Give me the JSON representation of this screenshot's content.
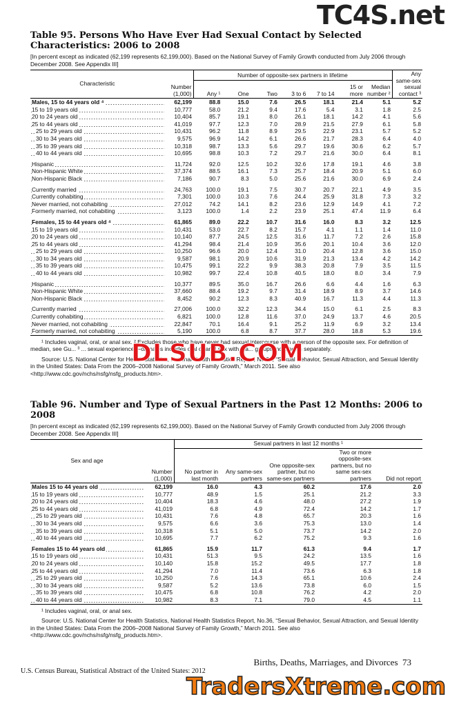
{
  "watermarks": {
    "top": "TC4S.net",
    "middle": "DLSUB.COM",
    "bottom": "TradersXtreme.com"
  },
  "t95": {
    "title": "Table 95. Persons Who Have Ever Had Sexual Contact by Selected Characteristics: 2006 to 2008",
    "subtitle": "[In percent except as indicated (62,199 represents 62,199,000). Based on the National Survey of Family Growth conducted from July 2006 through December 2008. See Appendix III]",
    "header": {
      "label": "Characteristic",
      "number": "Number (1,000)",
      "group": "Number of opposite-sex partners in lifetime",
      "columns": [
        "Any ¹",
        "One",
        "Two",
        "3 to 6",
        "7 to 14",
        "15 or more",
        "Median number ²"
      ],
      "last": "Any same-sex sexual contact ³"
    },
    "sections": [
      {
        "rows": [
          [
            "Males, 15 to 44 years old ⁴",
            "62,199",
            "88.8",
            "15.0",
            "7.6",
            "26.5",
            "18.1",
            "21.4",
            "5.1",
            "5.2"
          ],
          [
            "15 to 19 years old",
            "10,777",
            "58.0",
            "21.2",
            "9.4",
            "17.6",
            "5.4",
            "3.1",
            "1.8",
            "2.5"
          ],
          [
            "20 to 24 years old",
            "10,404",
            "85.7",
            "19.1",
            "8.0",
            "26.1",
            "18.1",
            "14.2",
            "4.1",
            "5.6"
          ],
          [
            "25 to 44 years old",
            "41,019",
            "97.7",
            "12.3",
            "7.0",
            "28.9",
            "21.5",
            "27.9",
            "6.1",
            "5.8"
          ],
          [
            "25 to 29 years old",
            "10,431",
            "96.2",
            "11.8",
            "8.9",
            "29.5",
            "22.9",
            "23.1",
            "5.7",
            "5.2"
          ],
          [
            "30 to 34 years old",
            "9,575",
            "96.9",
            "14.2",
            "6.1",
            "26.6",
            "21.7",
            "28.3",
            "6.4",
            "4.0"
          ],
          [
            "35 to 39 years old",
            "10,318",
            "98.7",
            "13.3",
            "5.6",
            "29.7",
            "19.6",
            "30.6",
            "6.2",
            "5.7"
          ],
          [
            "40 to 44 years old",
            "10,695",
            "98.8",
            "10.3",
            "7.2",
            "29.7",
            "21.6",
            "30.0",
            "6.4",
            "8.1"
          ]
        ]
      },
      {
        "rows": [
          [
            "Hispanic",
            "11,724",
            "92.0",
            "12.5",
            "10.2",
            "32.6",
            "17.8",
            "19.1",
            "4.6",
            "3.8"
          ],
          [
            "Non-Hispanic White",
            "37,374",
            "88.5",
            "16.1",
            "7.3",
            "25.7",
            "18.4",
            "20.9",
            "5.1",
            "6.0"
          ],
          [
            "Non-Hispanic Black",
            "7,186",
            "90.7",
            "8.3",
            "5.0",
            "25.6",
            "21.6",
            "30.0",
            "6.9",
            "2.4"
          ]
        ]
      },
      {
        "rows": [
          [
            "Currently married",
            "24,763",
            "100.0",
            "19.1",
            "7.5",
            "30.7",
            "20.7",
            "22.1",
            "4.9",
            "3.5"
          ],
          [
            "Currently cohabiting",
            "7,301",
            "100.0",
            "10.3",
            "7.6",
            "24.4",
            "25.9",
            "31.8",
            "7.3",
            "3.2"
          ],
          [
            "Never married, not cohabiting",
            "27,012",
            "74.2",
            "14.1",
            "8.2",
            "23.6",
            "12.9",
            "14.9",
            "4.1",
            "7.2"
          ],
          [
            "Formerly married, not cohabiting",
            "3,123",
            "100.0",
            "1.4",
            "2.2",
            "23.9",
            "25.1",
            "47.4",
            "11.9",
            "6.4"
          ]
        ]
      },
      {
        "rows": [
          [
            "Females, 15 to 44 years old ⁴",
            "61,865",
            "89.0",
            "22.2",
            "10.7",
            "31.6",
            "16.0",
            "8.3",
            "3.2",
            "12.5"
          ],
          [
            "15 to 19 years old",
            "10,431",
            "53.0",
            "22.7",
            "8.2",
            "15.7",
            "4.1",
            "1.1",
            "1.4",
            "11.0"
          ],
          [
            "20 to 24 years old",
            "10,140",
            "87.7",
            "24.5",
            "12.5",
            "31.6",
            "11.7",
            "7.2",
            "2.6",
            "15.8"
          ],
          [
            "25 to 44 years old",
            "41,294",
            "98.4",
            "21.4",
            "10.9",
            "35.6",
            "20.1",
            "10.4",
            "3.6",
            "12.0"
          ],
          [
            "25 to 29 years old",
            "10,250",
            "96.6",
            "20.0",
            "12.4",
            "31.0",
            "20.4",
            "12.8",
            "3.6",
            "15.0"
          ],
          [
            "30 to 34 years old",
            "9,587",
            "98.1",
            "20.9",
            "10.6",
            "31.9",
            "21.3",
            "13.4",
            "4.2",
            "14.2"
          ],
          [
            "35 to 39 years old",
            "10,475",
            "99.1",
            "22.2",
            "9.9",
            "38.3",
            "20.8",
            "7.9",
            "3.5",
            "11.5"
          ],
          [
            "40 to 44 years old",
            "10,982",
            "99.7",
            "22.4",
            "10.8",
            "40.5",
            "18.0",
            "8.0",
            "3.4",
            "7.9"
          ]
        ]
      },
      {
        "rows": [
          [
            "Hispanic",
            "10,377",
            "89.5",
            "35.0",
            "16.7",
            "26.6",
            "6.6",
            "4.4",
            "1.6",
            "6.3"
          ],
          [
            "Non-Hispanic White",
            "37,660",
            "88.4",
            "19.2",
            "9.7",
            "31.4",
            "18.9",
            "8.9",
            "3.7",
            "14.6"
          ],
          [
            "Non-Hispanic Black",
            "8,452",
            "90.2",
            "12.3",
            "8.3",
            "40.9",
            "16.7",
            "11.3",
            "4.4",
            "11.3"
          ]
        ]
      },
      {
        "rows": [
          [
            "Currently married",
            "27,006",
            "100.0",
            "32.2",
            "12.3",
            "34.4",
            "15.0",
            "6.1",
            "2.5",
            "8.3"
          ],
          [
            "Currently cohabiting",
            "6,821",
            "100.0",
            "12.8",
            "11.6",
            "37.0",
            "24.9",
            "13.7",
            "4.6",
            "20.5"
          ],
          [
            "Never married, not cohabiting",
            "22,847",
            "70.1",
            "16.4",
            "9.1",
            "25.2",
            "11.9",
            "6.9",
            "3.2",
            "13.4"
          ],
          [
            "Formerly married, not cohabiting",
            "5,190",
            "100.0",
            "6.8",
            "8.7",
            "37.7",
            "28.0",
            "18.8",
            "5.3",
            "19.6"
          ]
        ]
      }
    ],
    "footnote": "¹ Includes vaginal, oral, or anal sex. ² Excludes those who have never had sexual intercourse with a person of the opposite sex. For definition of median, see Gu... ³ ... sexual experience. For males includes oral or anal sex with ma... groups, not shown separately.",
    "source": "Source: U.S. National Center for Health Statistics, National Health Statistics Report, No.36, “Sexual Behavior, Sexual Attraction, and Sexual Identity in the United States: Data From the 2006–2008 National Survey of Family Growth,” March 2011. See also <http://www.cdc.gov/nchs/nsfg/nsfg_products.htm>."
  },
  "t96": {
    "title": "Table 96. Number and Type of Sexual Partners in the Past 12 Months: 2006 to 2008",
    "subtitle": "[In percent except as indicated (62,199 represents 62,199,000). Based on the National Survey of Family Growth conducted from July 2006 through December 2008. See Appendix III]",
    "header": {
      "label": "Sex and age",
      "number": "Number (1,000)",
      "group": "Sexual partners in last 12 months ¹",
      "columns": [
        "No partner in last month",
        "Any same-sex partners",
        "One opposite-sex partner, but no same-sex partners",
        "Two or more opposite-sex partners, but no same sex-sex partners",
        "Did not report"
      ]
    },
    "sections": [
      {
        "rows": [
          [
            "Males 15 to 44 years old",
            "62,199",
            "16.0",
            "4.3",
            "60.2",
            "17.6",
            "2.0"
          ],
          [
            "15 to 19 years old",
            "10,777",
            "48.9",
            "1.5",
            "25.1",
            "21.2",
            "3.3"
          ],
          [
            "20 to 24 years old",
            "10,404",
            "18.3",
            "4.6",
            "48.0",
            "27.2",
            "1.9"
          ],
          [
            "25 to 44 years old",
            "41,019",
            "6.8",
            "4.9",
            "72.4",
            "14.2",
            "1.7"
          ],
          [
            "25 to 29 years old",
            "10,431",
            "7.6",
            "4.8",
            "65.7",
            "20.3",
            "1.6"
          ],
          [
            "30 to 34 years old",
            "9,575",
            "6.6",
            "3.6",
            "75.3",
            "13.0",
            "1.4"
          ],
          [
            "35 to 39 years old",
            "10,318",
            "5.1",
            "5.0",
            "73.7",
            "14.2",
            "2.0"
          ],
          [
            "40 to 44 years old",
            "10,695",
            "7.7",
            "6.2",
            "75.2",
            "9.3",
            "1.6"
          ]
        ]
      },
      {
        "rows": [
          [
            "Females 15 to 44 years old",
            "61,865",
            "15.9",
            "11.7",
            "61.3",
            "9.4",
            "1.7"
          ],
          [
            "15 to 19 years old",
            "10,431",
            "51.3",
            "9.5",
            "24.2",
            "13.5",
            "1.6"
          ],
          [
            "20 to 24 years old",
            "10,140",
            "15.8",
            "15.2",
            "49.5",
            "17.7",
            "1.8"
          ],
          [
            "25 to 44 years old",
            "41,294",
            "7.0",
            "11.4",
            "73.6",
            "6.3",
            "1.8"
          ],
          [
            "25 to 29 years old",
            "10,250",
            "7.6",
            "14.3",
            "65.1",
            "10.6",
            "2.4"
          ],
          [
            "30 to 34 years old",
            "9,587",
            "5.2",
            "13.6",
            "73.8",
            "6.0",
            "1.5"
          ],
          [
            "35 to 39 years old",
            "10,475",
            "6.8",
            "10.8",
            "76.2",
            "4.2",
            "2.0"
          ],
          [
            "40 to 44 years old",
            "10,982",
            "8.3",
            "7.1",
            "79.0",
            "4.5",
            "1.1"
          ]
        ]
      }
    ],
    "footnote": "¹ Includes vaginal, oral, or anal sex.",
    "source": "Source: U.S. National Center for Health Statistics, National Health Statistics Report, No.36, “Sexual Behavior, Sexual Attraction, and Sexual Identity in the United States: Data From the 2006–2008 National Survey of Family Growth,” March 2011. See also <http://www.cdc.gov/nchs/nsfg/nsfg_products.htm>."
  },
  "footer": {
    "section": "Births, Deaths, Marriages, and Divorces",
    "page": "73",
    "publisher": "U.S. Census Bureau, Statistical Abstract of the United States: 2012"
  }
}
